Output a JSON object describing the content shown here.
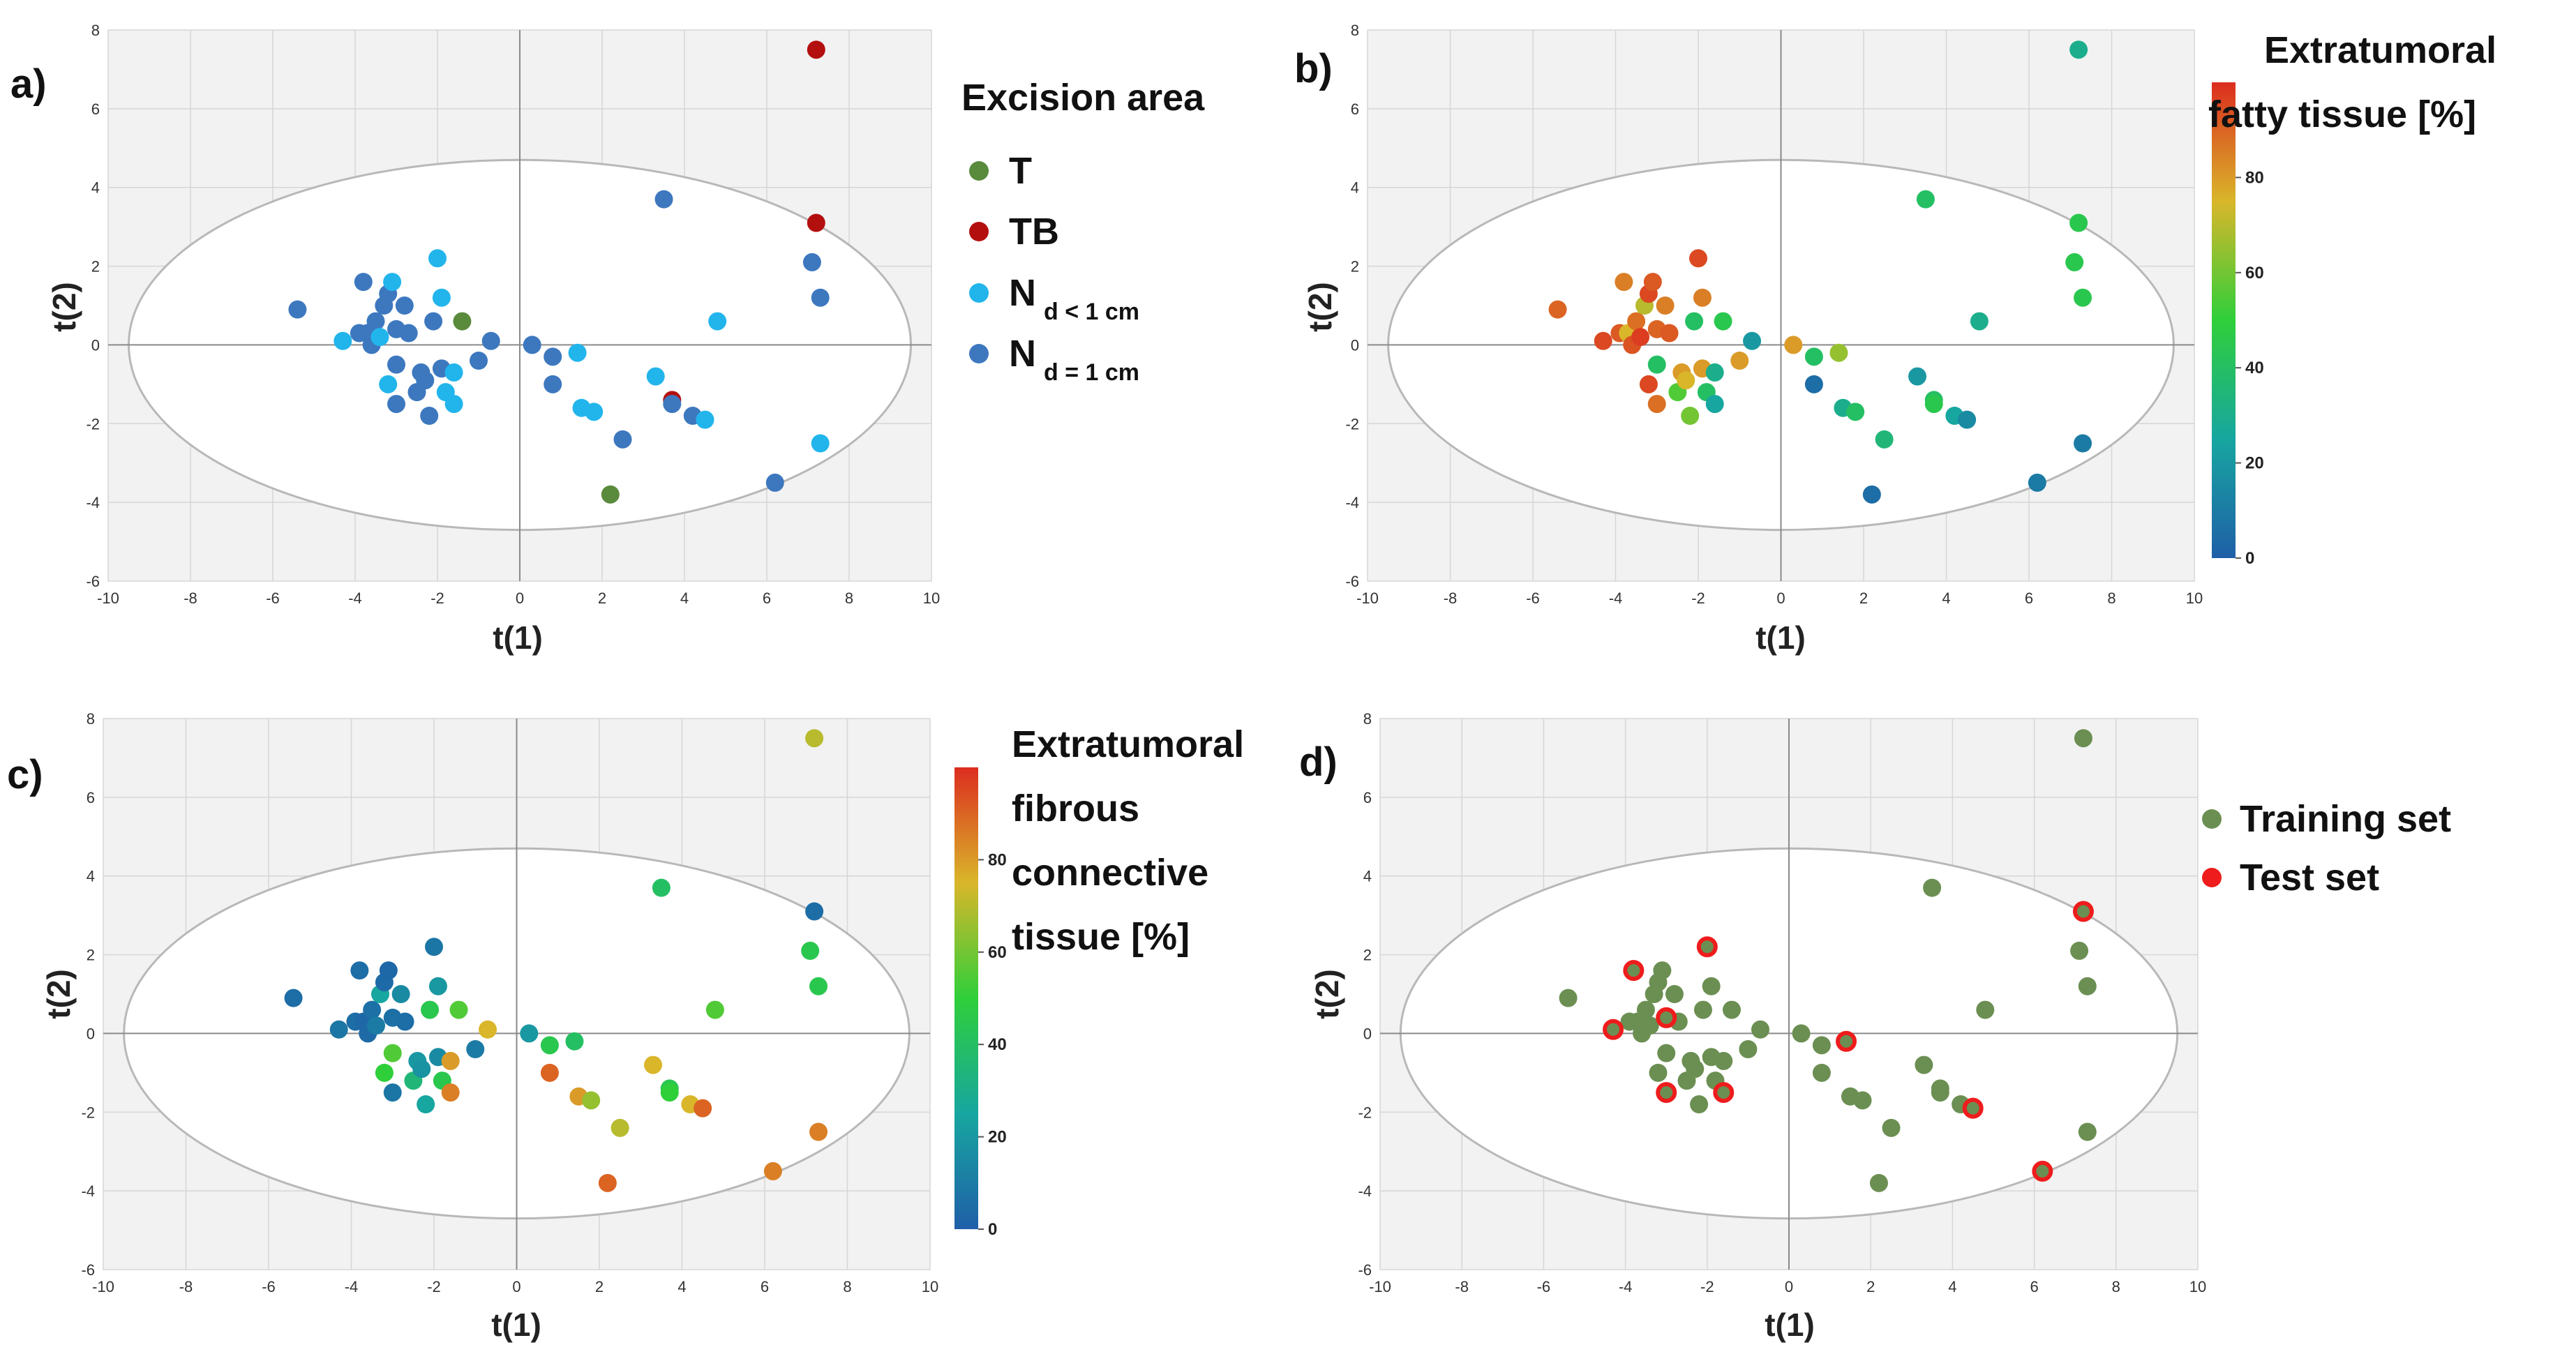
{
  "points": [
    {
      "x": -5.4,
      "y": 0.9,
      "area": "Nd1",
      "fat": 90,
      "fib": 5,
      "set": "train"
    },
    {
      "x": -4.3,
      "y": 0.1,
      "area": "Nlt1",
      "fat": 95,
      "fib": 8,
      "set": "test"
    },
    {
      "x": -3.9,
      "y": 0.3,
      "area": "Nd1",
      "fat": 92,
      "fib": 5,
      "set": "train"
    },
    {
      "x": -3.8,
      "y": 1.6,
      "area": "Nd1",
      "fat": 85,
      "fib": 5,
      "set": "test"
    },
    {
      "x": -3.7,
      "y": 0.3,
      "area": "Nd1",
      "fat": 75,
      "fib": 3,
      "set": "train"
    },
    {
      "x": -3.6,
      "y": 0.0,
      "area": "Nd1",
      "fat": 93,
      "fib": 4,
      "set": "train"
    },
    {
      "x": -3.5,
      "y": 0.6,
      "area": "Nd1",
      "fat": 88,
      "fib": 6,
      "set": "train"
    },
    {
      "x": -3.4,
      "y": 0.2,
      "area": "Nlt1",
      "fat": 97,
      "fib": 10,
      "set": "train"
    },
    {
      "x": -3.3,
      "y": 1.0,
      "area": "Nd1",
      "fat": 70,
      "fib": 25,
      "set": "train"
    },
    {
      "x": -3.2,
      "y": 1.3,
      "area": "Nd1",
      "fat": 95,
      "fib": 4,
      "set": "train"
    },
    {
      "x": -3.1,
      "y": 1.6,
      "area": "Nlt1",
      "fat": 92,
      "fib": 3,
      "set": "train"
    },
    {
      "x": -3.0,
      "y": 0.4,
      "area": "Nd1",
      "fat": 90,
      "fib": 6,
      "set": "test"
    },
    {
      "x": -3.2,
      "y": -1.0,
      "area": "Nlt1",
      "fat": 95,
      "fib": 50,
      "set": "train"
    },
    {
      "x": -3.0,
      "y": -0.5,
      "area": "Nd1",
      "fat": 40,
      "fib": 55,
      "set": "train"
    },
    {
      "x": -3.0,
      "y": -1.5,
      "area": "Nd1",
      "fat": 88,
      "fib": 8,
      "set": "test"
    },
    {
      "x": -2.8,
      "y": 1.0,
      "area": "Nd1",
      "fat": 85,
      "fib": 15,
      "set": "train"
    },
    {
      "x": -2.7,
      "y": 0.3,
      "area": "Nd1",
      "fat": 92,
      "fib": 5,
      "set": "train"
    },
    {
      "x": -2.5,
      "y": -1.2,
      "area": "Nd1",
      "fat": 55,
      "fib": 35,
      "set": "train"
    },
    {
      "x": -2.4,
      "y": -0.7,
      "area": "Nd1",
      "fat": 80,
      "fib": 20,
      "set": "train"
    },
    {
      "x": -2.3,
      "y": -0.9,
      "area": "Nd1",
      "fat": 75,
      "fib": 18,
      "set": "train"
    },
    {
      "x": -2.2,
      "y": -1.8,
      "area": "Nd1",
      "fat": 60,
      "fib": 25,
      "set": "train"
    },
    {
      "x": -2.1,
      "y": 0.6,
      "area": "Nd1",
      "fat": 40,
      "fib": 45,
      "set": "train"
    },
    {
      "x": -2.0,
      "y": 2.2,
      "area": "Nlt1",
      "fat": 95,
      "fib": 8,
      "set": "test"
    },
    {
      "x": -1.9,
      "y": 1.2,
      "area": "Nlt1",
      "fat": 85,
      "fib": 20,
      "set": "train"
    },
    {
      "x": -1.9,
      "y": -0.6,
      "area": "Nd1",
      "fat": 80,
      "fib": 15,
      "set": "train"
    },
    {
      "x": -1.8,
      "y": -1.2,
      "area": "Nlt1",
      "fat": 40,
      "fib": 45,
      "set": "train"
    },
    {
      "x": -1.6,
      "y": -0.7,
      "area": "Nlt1",
      "fat": 30,
      "fib": 80,
      "set": "train"
    },
    {
      "x": -1.6,
      "y": -1.5,
      "area": "Nlt1",
      "fat": 25,
      "fib": 85,
      "set": "test"
    },
    {
      "x": -1.4,
      "y": 0.6,
      "area": "T",
      "fat": 45,
      "fib": 55,
      "set": "train"
    },
    {
      "x": -1.0,
      "y": -0.4,
      "area": "Nd1",
      "fat": 80,
      "fib": 10,
      "set": "train"
    },
    {
      "x": -0.7,
      "y": 0.1,
      "area": "Nd1",
      "fat": 20,
      "fib": 75,
      "set": "train"
    },
    {
      "x": 0.3,
      "y": 0.0,
      "area": "Nd1",
      "fat": 80,
      "fib": 20,
      "set": "train"
    },
    {
      "x": 0.8,
      "y": -0.3,
      "area": "Nd1",
      "fat": 40,
      "fib": 45,
      "set": "train"
    },
    {
      "x": 0.8,
      "y": -1.0,
      "area": "Nd1",
      "fat": 5,
      "fib": 90,
      "set": "train"
    },
    {
      "x": 1.4,
      "y": -0.2,
      "area": "Nlt1",
      "fat": 65,
      "fib": 40,
      "set": "test"
    },
    {
      "x": 1.5,
      "y": -1.6,
      "area": "Nlt1",
      "fat": 30,
      "fib": 80,
      "set": "train"
    },
    {
      "x": 1.8,
      "y": -1.7,
      "area": "Nlt1",
      "fat": 40,
      "fib": 65,
      "set": "train"
    },
    {
      "x": 2.2,
      "y": -3.8,
      "area": "T",
      "fat": 5,
      "fib": 90,
      "set": "train"
    },
    {
      "x": 2.5,
      "y": -2.4,
      "area": "Nd1",
      "fat": 35,
      "fib": 70,
      "set": "train"
    },
    {
      "x": 3.3,
      "y": -0.8,
      "area": "Nlt1",
      "fat": 20,
      "fib": 75,
      "set": "train"
    },
    {
      "x": 3.5,
      "y": 3.7,
      "area": "Nd1",
      "fat": 40,
      "fib": 40,
      "set": "train"
    },
    {
      "x": 3.7,
      "y": -1.4,
      "area": "TB",
      "fat": 40,
      "fib": 45,
      "set": "train"
    },
    {
      "x": 3.7,
      "y": -1.5,
      "area": "Nd1",
      "fat": 45,
      "fib": 50,
      "set": "train"
    },
    {
      "x": 4.2,
      "y": -1.8,
      "area": "Nd1",
      "fat": 25,
      "fib": 75,
      "set": "train"
    },
    {
      "x": 4.5,
      "y": -1.9,
      "area": "Nlt1",
      "fat": 15,
      "fib": 90,
      "set": "test"
    },
    {
      "x": 4.8,
      "y": 0.6,
      "area": "Nlt1",
      "fat": 30,
      "fib": 55,
      "set": "train"
    },
    {
      "x": 6.2,
      "y": -3.5,
      "area": "Nd1",
      "fat": 10,
      "fib": 85,
      "set": "test"
    },
    {
      "x": 7.1,
      "y": 2.1,
      "area": "Nd1",
      "fat": 45,
      "fib": 45,
      "set": "train"
    },
    {
      "x": 7.2,
      "y": 7.5,
      "area": "TB",
      "fat": 30,
      "fib": 70,
      "set": "train"
    },
    {
      "x": 7.2,
      "y": 3.1,
      "area": "TB",
      "fat": 45,
      "fib": 5,
      "set": "test"
    },
    {
      "x": 7.3,
      "y": 1.2,
      "area": "Nd1",
      "fat": 45,
      "fib": 45,
      "set": "train"
    },
    {
      "x": 7.3,
      "y": -2.5,
      "area": "Nlt1",
      "fat": 10,
      "fib": 85,
      "set": "train"
    }
  ],
  "chart_data": [
    {
      "type": "scatter",
      "panel_label": "a)",
      "xlabel": "t(1)",
      "ylabel": "t(2)",
      "xlim": [
        -10,
        10
      ],
      "ylim": [
        -6,
        8
      ],
      "xticks": [
        -10,
        -8,
        -6,
        -4,
        -2,
        0,
        2,
        4,
        6,
        8,
        10
      ],
      "yticks": [
        -6,
        -4,
        -2,
        0,
        2,
        4,
        6,
        8
      ],
      "color_by": "area",
      "legend": {
        "title": "Excision area",
        "entries": [
          {
            "key": "T",
            "label": "T",
            "sub": "",
            "color": "#5a8a3c"
          },
          {
            "key": "TB",
            "label": "TB",
            "sub": "",
            "color": "#b30f0f"
          },
          {
            "key": "Nlt1",
            "label": "N",
            "sub": "d < 1 cm",
            "color": "#22b5ec"
          },
          {
            "key": "Nd1",
            "label": "N",
            "sub": "d = 1 cm",
            "color": "#3d78bf"
          }
        ]
      }
    },
    {
      "type": "scatter",
      "panel_label": "b)",
      "xlabel": "t(1)",
      "ylabel": "t(2)",
      "xlim": [
        -10,
        10
      ],
      "ylim": [
        -6,
        8
      ],
      "xticks": [
        -10,
        -8,
        -6,
        -4,
        -2,
        0,
        2,
        4,
        6,
        8,
        10
      ],
      "yticks": [
        -6,
        -4,
        -2,
        0,
        2,
        4,
        6,
        8
      ],
      "color_by": "fat",
      "colorbar": {
        "title_lines": [
          "Extratumoral",
          "fatty tissue [%]"
        ],
        "range": [
          0,
          100
        ],
        "ticks": [
          0,
          20,
          40,
          60,
          80
        ],
        "tick_labels": [
          "0",
          "20",
          "40",
          "60",
          "80"
        ]
      }
    },
    {
      "type": "scatter",
      "panel_label": "c)",
      "xlabel": "t(1)",
      "ylabel": "t(2)",
      "xlim": [
        -10,
        10
      ],
      "ylim": [
        -6,
        8
      ],
      "xticks": [
        -10,
        -8,
        -6,
        -4,
        -2,
        0,
        2,
        4,
        6,
        8,
        10
      ],
      "yticks": [
        -6,
        -4,
        -2,
        0,
        2,
        4,
        6,
        8
      ],
      "color_by": "fib",
      "colorbar": {
        "title_lines": [
          "Extratumoral",
          "fibrous",
          "connective",
          "tissue [%]"
        ],
        "range": [
          0,
          100
        ],
        "ticks": [
          0,
          20,
          40,
          60,
          80
        ],
        "tick_labels": [
          "0",
          "20",
          "40",
          "60",
          "80"
        ]
      }
    },
    {
      "type": "scatter",
      "panel_label": "d)",
      "xlabel": "t(1)",
      "ylabel": "t(2)",
      "xlim": [
        -10,
        10
      ],
      "ylim": [
        -6,
        8
      ],
      "xticks": [
        -10,
        -8,
        -6,
        -4,
        -2,
        0,
        2,
        4,
        6,
        8,
        10
      ],
      "yticks": [
        -6,
        -4,
        -2,
        0,
        2,
        4,
        6,
        8
      ],
      "color_by": "set",
      "legend": {
        "title": "",
        "entries": [
          {
            "key": "train",
            "label": "Training set",
            "sub": "",
            "color": "#6b8f52"
          },
          {
            "key": "test",
            "label": "Test set",
            "sub": "",
            "color": "#ee1c1c"
          }
        ]
      }
    }
  ],
  "colors": {
    "plot_background": "#f2f2f2",
    "ellipse_fill": "#ffffff",
    "ellipse_stroke": "#b8b8b8",
    "grid": "#d6d6d6",
    "zero_line": "#8a8a8a",
    "colormap": [
      "#1f5fa8",
      "#17a6a0",
      "#2fcf3a",
      "#d9b62a",
      "#dc2d1f"
    ]
  },
  "ellipse": {
    "cx": 0,
    "cy": 0,
    "rx": 9.5,
    "ry": 4.7
  }
}
